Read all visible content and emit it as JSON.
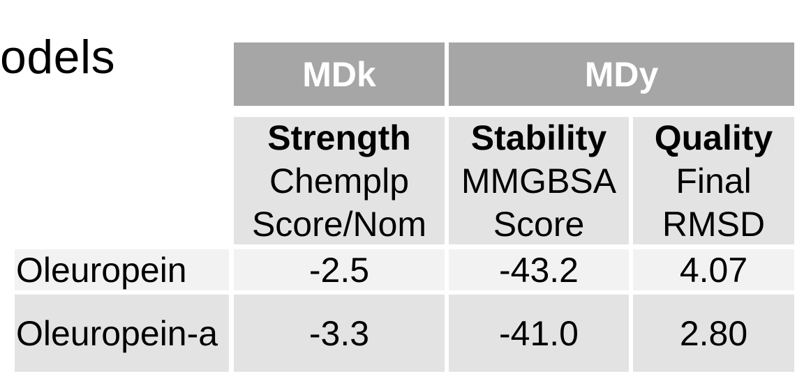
{
  "slide": {
    "title_fragment": "odels"
  },
  "table": {
    "group_headers": [
      {
        "label": "MDk"
      },
      {
        "label": "MDy"
      }
    ],
    "metric_headers": [
      {
        "name": "Strength",
        "line1": "Chemplp",
        "line2": "Score/Nom"
      },
      {
        "name": "Stability",
        "line1": "MMGBSA",
        "line2": "Score"
      },
      {
        "name": "Quality",
        "line1": "Final",
        "line2": "RMSD"
      }
    ],
    "rows": [
      {
        "label": "Oleuropein",
        "values": [
          "-2.5",
          "-43.2",
          "4.07"
        ]
      },
      {
        "label": "Oleuropein-a",
        "values": [
          "-3.3",
          "-41.0",
          "2.80"
        ]
      }
    ]
  },
  "colors": {
    "group_header_bg": "#a6a6a6",
    "group_header_text": "#ffffff",
    "metric_header_bg": "#e3e3e3",
    "row1_bg": "#f2f2f2",
    "row2_bg": "#e3e3e3"
  }
}
